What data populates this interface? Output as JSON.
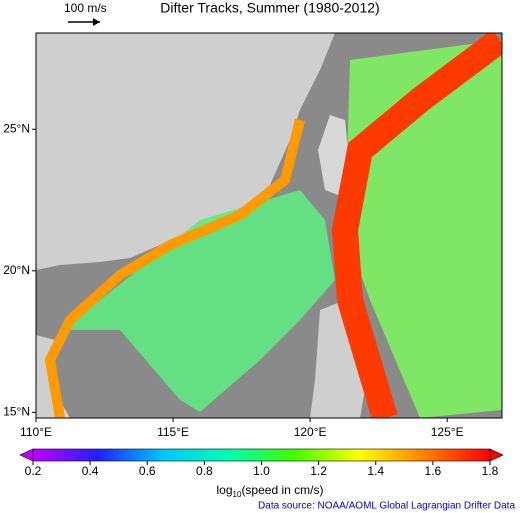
{
  "title": "Difter Tracks, Summer (1980-2012)",
  "scale_label": "100 m/s",
  "map": {
    "xlim": [
      110,
      127
    ],
    "ylim": [
      14.8,
      28.4
    ],
    "xticks": [
      {
        "value": 110,
        "label": "110°E"
      },
      {
        "value": 115,
        "label": "115°E"
      },
      {
        "value": 120,
        "label": "120°E"
      },
      {
        "value": 125,
        "label": "125°E"
      }
    ],
    "yticks": [
      {
        "value": 15,
        "label": "15°N"
      },
      {
        "value": 20,
        "label": "20°N"
      },
      {
        "value": 25,
        "label": "25°N"
      }
    ]
  },
  "colorbar": {
    "lim": [
      0.2,
      1.8
    ],
    "ticks": [
      0.2,
      0.4,
      0.6,
      0.8,
      {
        "value": 1,
        "label": "1.0"
      },
      1.2,
      1.4,
      1.6,
      1.8
    ],
    "colors": [
      "#c000ff",
      "#2020ff",
      "#00c8ff",
      "#00ffb0",
      "#40ff00",
      "#ffff00",
      "#ff8000",
      "#ff0000"
    ],
    "label_main": "log",
    "label_sub": "10",
    "label_rest": "(speed in cm/s)"
  },
  "source": "Data source: NOAA/AOML Global Lagrangian Drifter Data"
}
